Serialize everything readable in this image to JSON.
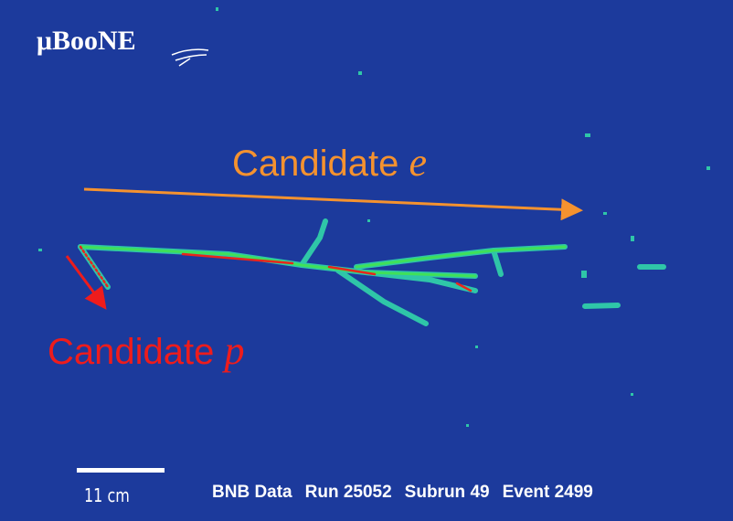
{
  "logo": "μBooNE",
  "annotations": [
    {
      "text": "Candidate",
      "particle": "e"
    },
    {
      "text": "Candidate",
      "particle": "p"
    }
  ],
  "scale_bar": "11 cm",
  "footer": [
    "BNB Data",
    "Run 25052",
    "Subrun 49",
    "Event 2499"
  ]
}
